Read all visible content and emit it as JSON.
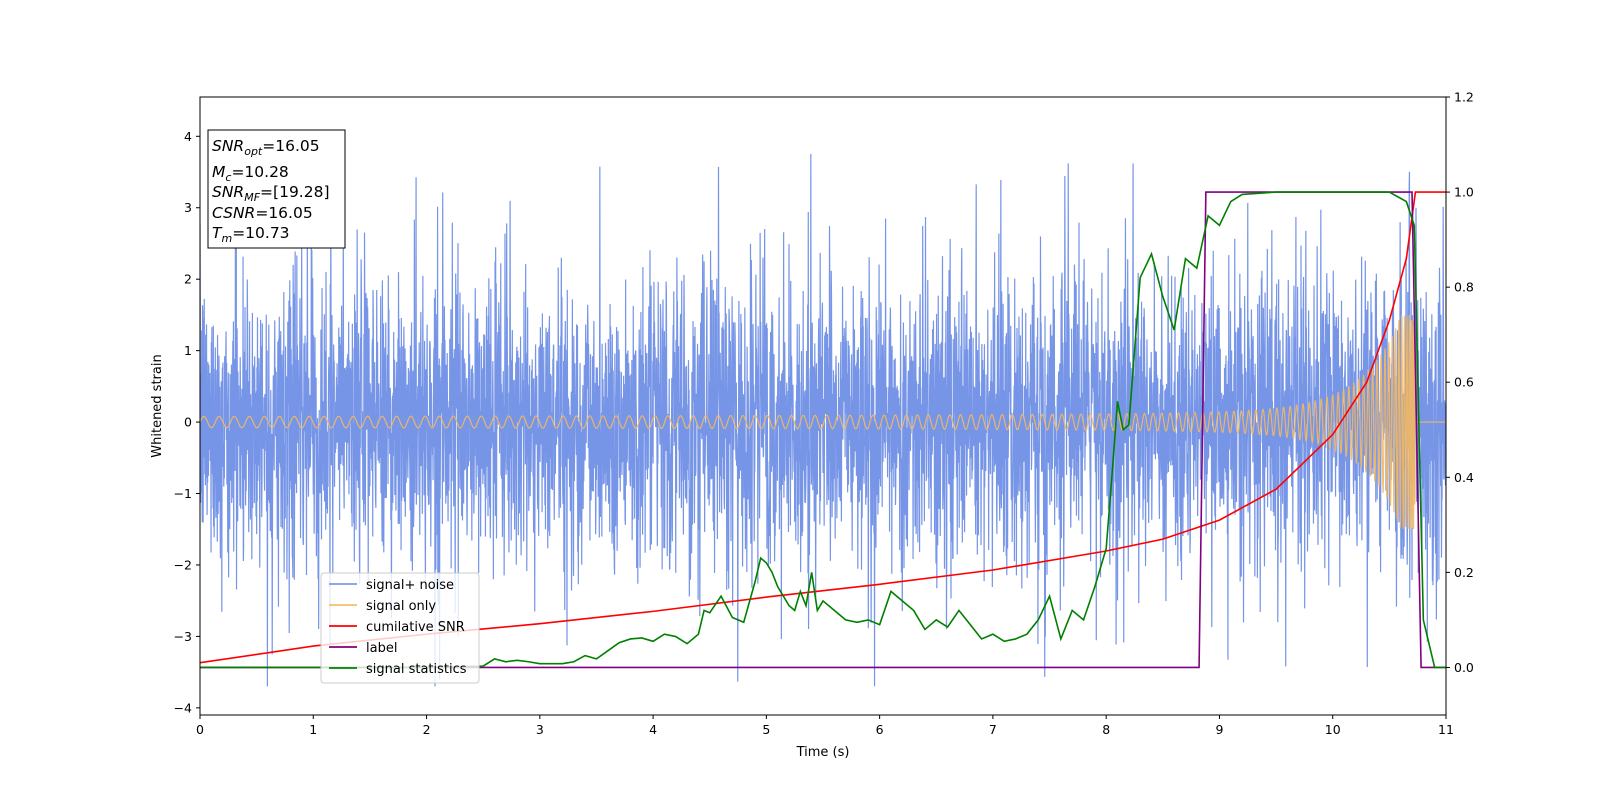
{
  "chart_data": {
    "type": "line",
    "title": "",
    "xlabel": "Time (s)",
    "ylabel": "Whitened strain",
    "xlim": [
      0,
      11
    ],
    "ylim": [
      -4.1,
      4.55
    ],
    "ylim_right": [
      -0.1,
      1.2
    ],
    "x_ticks": [
      "0",
      "1",
      "2",
      "3",
      "4",
      "5",
      "6",
      "7",
      "8",
      "9",
      "10",
      "11"
    ],
    "y_ticks": [
      "4",
      "3",
      "2",
      "1",
      "0",
      "−1",
      "−2",
      "−3",
      "−4"
    ],
    "y_ticks_right": [
      "1.2",
      "1.0",
      "0.8",
      "0.6",
      "0.4",
      "0.2",
      "0.0"
    ],
    "grid": false,
    "legend_position": "lower-left",
    "info_box": {
      "lines": [
        {
          "sym": "SNR",
          "sub": "opt",
          "value": "=16.05"
        },
        {
          "sym": "M",
          "sub": "c",
          "value": "=10.28"
        },
        {
          "sym": "SNR",
          "sub": "MF",
          "value": "=[19.28]"
        },
        {
          "sym": "CSNR",
          "sub": "",
          "value": "=16.05"
        },
        {
          "sym": "T",
          "sub": "m",
          "value": "=10.73"
        }
      ]
    },
    "series": [
      {
        "name": "signal+ noise",
        "axis": "left",
        "color": "#6f8fe6",
        "description": "whitened noisy strain, approx. Gaussian, std ~1, spikes to ~4.2",
        "noise_std": 1.0,
        "range": [
          -3.7,
          4.2
        ]
      },
      {
        "name": "signal only",
        "axis": "left",
        "color": "#f5b860",
        "description": "chirp signal, amplitude grows from ~0.05 to ~1.5 near t=10.73",
        "t_merge": 10.73,
        "peak_amplitude": 1.5
      },
      {
        "name": "cumilative SNR",
        "axis": "right",
        "color": "#ff0000",
        "points": [
          [
            0,
            0.01
          ],
          [
            1,
            0.045
          ],
          [
            2,
            0.07
          ],
          [
            3,
            0.092
          ],
          [
            4,
            0.118
          ],
          [
            5,
            0.148
          ],
          [
            6,
            0.175
          ],
          [
            7,
            0.205
          ],
          [
            8,
            0.245
          ],
          [
            8.5,
            0.27
          ],
          [
            9,
            0.31
          ],
          [
            9.5,
            0.375
          ],
          [
            10,
            0.49
          ],
          [
            10.3,
            0.6
          ],
          [
            10.5,
            0.73
          ],
          [
            10.65,
            0.86
          ],
          [
            10.73,
            1.0
          ],
          [
            11,
            1.0
          ]
        ]
      },
      {
        "name": "label",
        "axis": "right",
        "color": "#800080",
        "points": [
          [
            0,
            0
          ],
          [
            8.82,
            0
          ],
          [
            8.88,
            1.0
          ],
          [
            10.7,
            1.0
          ],
          [
            10.78,
            0
          ],
          [
            11,
            0
          ]
        ]
      },
      {
        "name": "signal statistics",
        "axis": "right",
        "color": "#008000",
        "points": [
          [
            0,
            0
          ],
          [
            1,
            0
          ],
          [
            2,
            0
          ],
          [
            2.5,
            0.003
          ],
          [
            2.6,
            0.018
          ],
          [
            2.7,
            0.012
          ],
          [
            2.8,
            0.015
          ],
          [
            2.9,
            0.012
          ],
          [
            3.0,
            0.008
          ],
          [
            3.2,
            0.008
          ],
          [
            3.3,
            0.012
          ],
          [
            3.4,
            0.025
          ],
          [
            3.5,
            0.018
          ],
          [
            3.6,
            0.035
          ],
          [
            3.7,
            0.052
          ],
          [
            3.8,
            0.06
          ],
          [
            3.9,
            0.062
          ],
          [
            4.0,
            0.055
          ],
          [
            4.1,
            0.07
          ],
          [
            4.2,
            0.065
          ],
          [
            4.3,
            0.05
          ],
          [
            4.4,
            0.07
          ],
          [
            4.45,
            0.12
          ],
          [
            4.5,
            0.115
          ],
          [
            4.6,
            0.15
          ],
          [
            4.7,
            0.105
          ],
          [
            4.8,
            0.095
          ],
          [
            4.9,
            0.18
          ],
          [
            4.95,
            0.23
          ],
          [
            5.0,
            0.22
          ],
          [
            5.05,
            0.2
          ],
          [
            5.1,
            0.17
          ],
          [
            5.2,
            0.13
          ],
          [
            5.25,
            0.12
          ],
          [
            5.3,
            0.16
          ],
          [
            5.35,
            0.13
          ],
          [
            5.4,
            0.2
          ],
          [
            5.45,
            0.12
          ],
          [
            5.5,
            0.14
          ],
          [
            5.6,
            0.12
          ],
          [
            5.7,
            0.1
          ],
          [
            5.8,
            0.095
          ],
          [
            5.9,
            0.1
          ],
          [
            6.0,
            0.09
          ],
          [
            6.1,
            0.16
          ],
          [
            6.2,
            0.14
          ],
          [
            6.3,
            0.12
          ],
          [
            6.4,
            0.08
          ],
          [
            6.5,
            0.1
          ],
          [
            6.6,
            0.085
          ],
          [
            6.7,
            0.12
          ],
          [
            6.8,
            0.09
          ],
          [
            6.9,
            0.06
          ],
          [
            7.0,
            0.07
          ],
          [
            7.1,
            0.055
          ],
          [
            7.2,
            0.06
          ],
          [
            7.3,
            0.07
          ],
          [
            7.4,
            0.1
          ],
          [
            7.5,
            0.15
          ],
          [
            7.6,
            0.06
          ],
          [
            7.7,
            0.12
          ],
          [
            7.8,
            0.1
          ],
          [
            7.9,
            0.17
          ],
          [
            8.0,
            0.25
          ],
          [
            8.05,
            0.4
          ],
          [
            8.1,
            0.56
          ],
          [
            8.15,
            0.5
          ],
          [
            8.2,
            0.51
          ],
          [
            8.3,
            0.82
          ],
          [
            8.4,
            0.87
          ],
          [
            8.5,
            0.78
          ],
          [
            8.6,
            0.71
          ],
          [
            8.7,
            0.86
          ],
          [
            8.8,
            0.84
          ],
          [
            8.9,
            0.95
          ],
          [
            9.0,
            0.93
          ],
          [
            9.1,
            0.98
          ],
          [
            9.2,
            0.995
          ],
          [
            9.5,
            1.0
          ],
          [
            10.5,
            1.0
          ],
          [
            10.65,
            0.98
          ],
          [
            10.72,
            0.93
          ],
          [
            10.8,
            0.1
          ],
          [
            10.9,
            0
          ],
          [
            11,
            0
          ]
        ]
      }
    ]
  }
}
